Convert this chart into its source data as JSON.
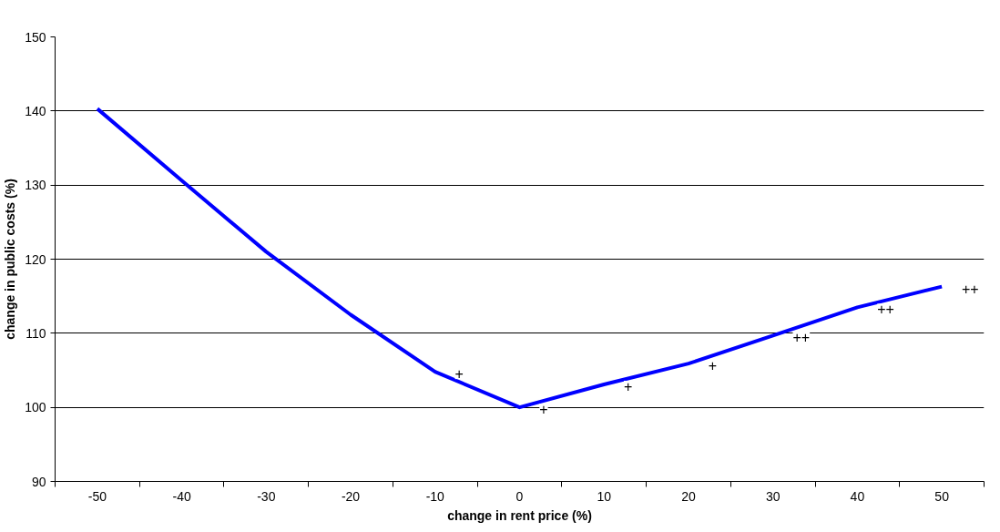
{
  "chart_data": {
    "type": "line",
    "xlabel": "change in rent price (%)",
    "ylabel": "change in public costs (%)",
    "categories": [
      "-50",
      "-40",
      "-30",
      "-20",
      "-10",
      "0",
      "10",
      "20",
      "30",
      "40",
      "50"
    ],
    "series": [
      {
        "color": "#0000ff",
        "values": [
          140.3,
          130.6,
          121.0,
          112.5,
          104.8,
          100.0,
          103.1,
          105.9,
          109.7,
          113.5,
          116.3
        ],
        "value_labels": [
          null,
          null,
          null,
          null,
          "+",
          "+",
          "+",
          "+",
          "++",
          "++",
          "++"
        ]
      }
    ],
    "ylim": [
      90,
      150
    ],
    "yticks": [
      90,
      100,
      110,
      120,
      130,
      140,
      150
    ],
    "grid": "y",
    "marker": "none",
    "line_style": "solid"
  }
}
